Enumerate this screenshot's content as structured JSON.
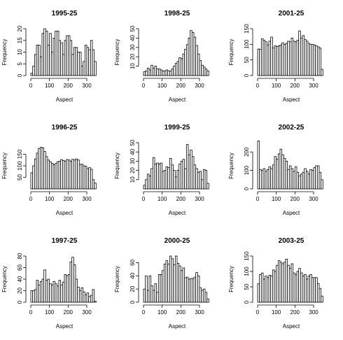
{
  "chart_data": [
    {
      "type": "bar",
      "title": "1995-25",
      "xlabel": "Aspect",
      "ylabel": "Frequency",
      "xlim": [
        0,
        360
      ],
      "ylim": [
        0,
        20
      ],
      "xticks": [
        0,
        100,
        200,
        300
      ],
      "yticks": [
        0,
        5,
        10,
        15,
        20
      ],
      "bin_width": 10,
      "values": [
        1,
        4,
        9,
        13,
        13,
        8,
        18,
        20,
        19,
        13,
        18,
        10,
        16,
        19,
        19,
        15,
        14,
        9,
        15,
        17,
        17,
        15,
        9,
        12,
        12,
        10,
        10,
        4,
        6,
        13,
        12,
        11,
        15,
        11,
        6
      ]
    },
    {
      "type": "bar",
      "title": "1998-25",
      "xlabel": "Aspect",
      "ylabel": "Frequency",
      "xlim": [
        0,
        360
      ],
      "ylim": [
        0,
        50
      ],
      "xticks": [
        0,
        100,
        200,
        300
      ],
      "yticks": [
        10,
        20,
        30,
        40,
        50
      ],
      "bin_width": 10,
      "values": [
        4,
        5,
        8,
        6,
        11,
        8,
        10,
        7,
        7,
        6,
        5,
        5,
        6,
        5,
        5,
        7,
        10,
        13,
        15,
        19,
        18,
        23,
        28,
        33,
        40,
        48,
        46,
        41,
        32,
        23,
        16,
        11,
        9,
        7,
        5
      ]
    },
    {
      "type": "bar",
      "title": "2001-25",
      "xlabel": "Aspect",
      "ylabel": "Frequency",
      "xlim": [
        0,
        360
      ],
      "ylim": [
        0,
        150
      ],
      "xticks": [
        0,
        100,
        200,
        300
      ],
      "yticks": [
        0,
        50,
        100,
        150
      ],
      "bin_width": 10,
      "values": [
        85,
        84,
        118,
        113,
        108,
        98,
        110,
        123,
        88,
        95,
        93,
        95,
        98,
        105,
        100,
        103,
        110,
        108,
        120,
        110,
        108,
        113,
        143,
        120,
        128,
        115,
        110,
        103,
        100,
        100,
        98,
        95,
        92,
        88,
        20
      ]
    },
    {
      "type": "bar",
      "title": "1996-25",
      "xlabel": "Aspect",
      "ylabel": "Frequency",
      "xlim": [
        0,
        360
      ],
      "ylim": [
        0,
        200
      ],
      "xticks": [
        0,
        100,
        200,
        300
      ],
      "yticks": [
        50,
        100,
        150
      ],
      "bin_width": 10,
      "values": [
        70,
        100,
        130,
        155,
        175,
        180,
        178,
        162,
        140,
        125,
        118,
        110,
        105,
        110,
        118,
        120,
        127,
        123,
        120,
        127,
        125,
        120,
        128,
        125,
        130,
        125,
        106,
        107,
        100,
        98,
        88,
        92,
        85,
        40,
        25
      ]
    },
    {
      "type": "bar",
      "title": "1999-25",
      "xlabel": "Aspect",
      "ylabel": "Frequency",
      "xlim": [
        0,
        360
      ],
      "ylim": [
        0,
        50
      ],
      "xticks": [
        0,
        100,
        200,
        300
      ],
      "yticks": [
        10,
        20,
        30,
        40,
        50
      ],
      "bin_width": 10,
      "values": [
        4,
        10,
        16,
        14,
        22,
        34,
        27,
        28,
        27,
        28,
        19,
        20,
        24,
        23,
        33,
        26,
        20,
        13,
        20,
        27,
        30,
        32,
        22,
        48,
        37,
        42,
        35,
        26,
        22,
        18,
        19,
        10,
        21,
        20,
        6
      ]
    },
    {
      "type": "bar",
      "title": "2002-25",
      "xlabel": "Aspect",
      "ylabel": "Frequency",
      "xlim": [
        0,
        360
      ],
      "ylim": [
        0,
        250
      ],
      "xticks": [
        0,
        100,
        200,
        300
      ],
      "yticks": [
        0,
        100,
        200
      ],
      "bin_width": 10,
      "values": [
        260,
        105,
        100,
        110,
        95,
        105,
        120,
        110,
        130,
        175,
        160,
        190,
        215,
        185,
        165,
        150,
        105,
        125,
        110,
        95,
        120,
        90,
        70,
        80,
        90,
        110,
        95,
        80,
        105,
        100,
        115,
        125,
        125,
        90,
        50
      ]
    },
    {
      "type": "bar",
      "title": "1997-25",
      "xlabel": "Aspect",
      "ylabel": "Frequency",
      "xlim": [
        0,
        360
      ],
      "ylim": [
        0,
        80
      ],
      "xticks": [
        0,
        100,
        200,
        300
      ],
      "yticks": [
        0,
        20,
        40,
        60,
        80
      ],
      "bin_width": 10,
      "values": [
        20,
        20,
        22,
        38,
        30,
        36,
        40,
        56,
        38,
        40,
        32,
        30,
        36,
        32,
        28,
        38,
        30,
        35,
        48,
        46,
        48,
        70,
        78,
        65,
        40,
        26,
        20,
        25,
        18,
        13,
        16,
        10,
        12,
        22,
        2
      ]
    },
    {
      "type": "bar",
      "title": "2000-25",
      "xlabel": "Aspect",
      "ylabel": "Frequency",
      "xlim": [
        0,
        360
      ],
      "ylim": [
        0,
        70
      ],
      "xticks": [
        0,
        100,
        200,
        300
      ],
      "yticks": [
        0,
        20,
        40,
        60
      ],
      "bin_width": 10,
      "values": [
        20,
        40,
        18,
        40,
        25,
        18,
        28,
        15,
        42,
        42,
        48,
        58,
        63,
        58,
        70,
        66,
        57,
        70,
        59,
        55,
        48,
        52,
        37,
        38,
        35,
        36,
        36,
        38,
        45,
        40,
        22,
        18,
        20,
        15,
        5
      ]
    },
    {
      "type": "bar",
      "title": "2003-25",
      "xlabel": "Aspect",
      "ylabel": "Frequency",
      "xlim": [
        0,
        360
      ],
      "ylim": [
        0,
        150
      ],
      "xticks": [
        0,
        100,
        200,
        300
      ],
      "yticks": [
        0,
        50,
        100,
        150
      ],
      "bin_width": 10,
      "values": [
        60,
        90,
        95,
        75,
        85,
        80,
        88,
        85,
        105,
        100,
        120,
        135,
        130,
        125,
        130,
        140,
        120,
        110,
        125,
        95,
        90,
        100,
        110,
        95,
        85,
        90,
        75,
        85,
        90,
        80,
        80,
        80,
        60,
        45,
        20
      ]
    }
  ]
}
